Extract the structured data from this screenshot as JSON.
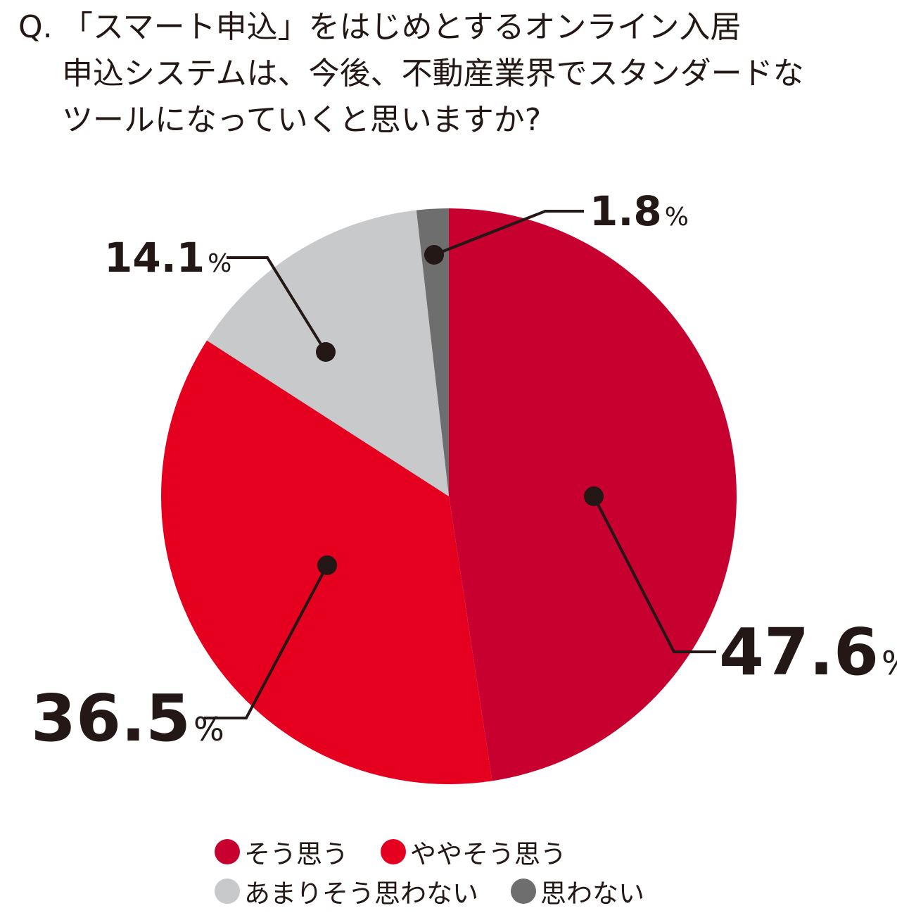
{
  "question": {
    "prefix": "Q.",
    "line1": "「スマート申込」をはじめとするオンライン入居",
    "line2": "申込システムは、今後、不動産業界でスタンダードな",
    "line3": "ツールになっていくと思いますか?"
  },
  "chart_data": {
    "type": "pie",
    "title": "「スマート申込」をはじめとするオンライン入居申込システムは、今後、不動産業界でスタンダードなツールになっていくと思いますか?",
    "start_angle_deg": 0,
    "direction": "clockwise",
    "slices": [
      {
        "label": "そう思う",
        "value": 47.6,
        "value_text": "47.6",
        "color": "#c8002f"
      },
      {
        "label": "ややそう思う",
        "value": 36.5,
        "value_text": "36.5",
        "color": "#e50020"
      },
      {
        "label": "あまりそう思わない",
        "value": 14.1,
        "value_text": "14.1",
        "color": "#c8c9cb"
      },
      {
        "label": "思わない",
        "value": 1.8,
        "value_text": "1.8",
        "color": "#6e6e6e"
      }
    ],
    "unit": "%"
  },
  "legend": {
    "rows": [
      [
        {
          "label": "そう思う",
          "color": "#c8002f"
        },
        {
          "label": "ややそう思う",
          "color": "#e50020"
        }
      ],
      [
        {
          "label": "あまりそう思わない",
          "color": "#c8c9cb"
        },
        {
          "label": "思わない",
          "color": "#6e6e6e"
        }
      ]
    ]
  }
}
